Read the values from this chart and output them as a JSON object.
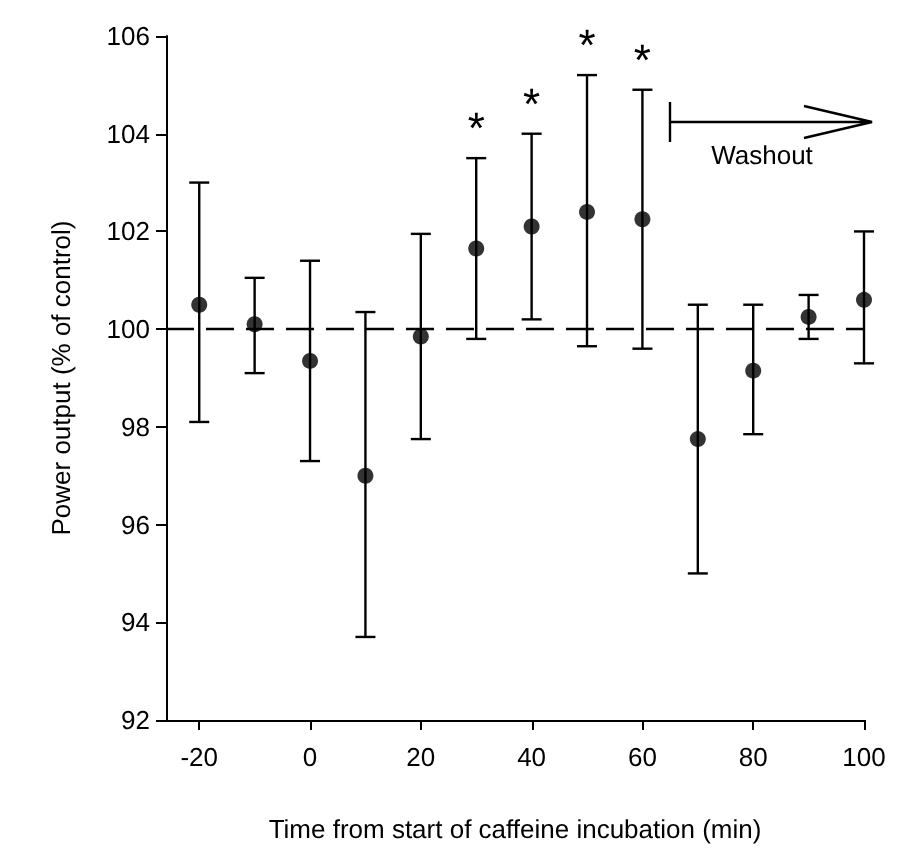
{
  "chart_data": {
    "type": "scatter",
    "xlabel": "Time from start of caffeine incubation (min)",
    "ylabel": "Power output (% of control)",
    "x": [
      -20,
      -10,
      0,
      10,
      20,
      30,
      40,
      50,
      60,
      70,
      80,
      90,
      100
    ],
    "series": [
      {
        "color": "#000000",
        "values": [
          100.5,
          100.1,
          99.35,
          97.0,
          99.85,
          101.65,
          102.1,
          102.4,
          102.25,
          97.75,
          99.15,
          100.25,
          100.6
        ],
        "errors": [
          [
            98.1,
            103.0
          ],
          [
            99.1,
            101.05
          ],
          [
            97.3,
            101.4
          ],
          [
            93.7,
            100.35
          ],
          [
            97.75,
            101.95
          ],
          [
            99.8,
            103.5
          ],
          [
            100.2,
            104.0
          ],
          [
            99.65,
            105.2
          ],
          [
            99.6,
            104.9
          ],
          [
            95.0,
            100.5
          ],
          [
            97.85,
            100.5
          ],
          [
            99.8,
            100.7
          ],
          [
            99.3,
            102.0
          ]
        ]
      }
    ],
    "xlim": [
      -26,
      100
    ],
    "xticks": [
      -20,
      0,
      20,
      40,
      60,
      80,
      100
    ],
    "ylim": [
      92,
      106
    ],
    "yticks": [
      92,
      94,
      96,
      98,
      100,
      102,
      104,
      106
    ],
    "marker": "circle",
    "ref_lines": [
      {
        "axis": "y",
        "value": 100,
        "line_style": "dashed",
        "color": "#000000"
      }
    ],
    "annotations": [
      {
        "text": "*",
        "x": 30,
        "y": 103.5
      },
      {
        "text": "*",
        "x": 40,
        "y": 104.0
      },
      {
        "text": "*",
        "x": 50,
        "y": 105.2
      },
      {
        "text": "*",
        "x": 60,
        "y": 104.9
      },
      "Washout"
    ]
  }
}
